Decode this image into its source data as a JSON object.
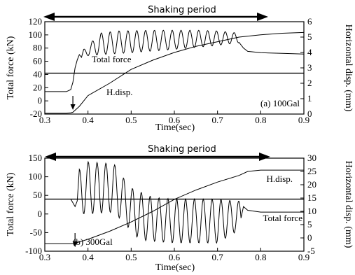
{
  "chart_data": [
    {
      "type": "line",
      "shaking_label": "Shaking period",
      "shaking_start": 0.31,
      "shaking_end": 0.76,
      "xlabel": "Time(sec)",
      "ylabel_left": "Total force (kN)",
      "ylabel_right": "Horizontal disp. (mm)",
      "xlim": [
        0.3,
        0.9
      ],
      "ylim_left": [
        -20,
        120
      ],
      "ylim_right": [
        0,
        6
      ],
      "x_ticks": [
        "0.3",
        "0.4",
        "0.5",
        "0.6",
        "0.7",
        "0.8",
        "0.9"
      ],
      "y_ticks_left": [
        "-20",
        "0",
        "20",
        "40",
        "60",
        "80",
        "100",
        "120"
      ],
      "y_ticks_right": [
        "0",
        "1",
        "2",
        "3",
        "4",
        "5",
        "6"
      ],
      "panel_label": "(a) 100Gal",
      "hline_left": 42,
      "arrow_x": 0.365,
      "series": [
        {
          "name": "Total force",
          "axis": "left",
          "x": [
            0.3,
            0.35,
            0.36,
            0.365,
            0.37,
            0.375,
            0.38,
            0.385,
            0.39,
            0.4,
            0.76,
            0.77,
            0.8,
            0.85,
            0.9
          ],
          "y": [
            14,
            14,
            17,
            28,
            50,
            62,
            70,
            66,
            74,
            70,
            80,
            75,
            73,
            72,
            71
          ],
          "osc_start": 0.39,
          "osc_end": 0.75,
          "osc_period": 0.0205,
          "osc_upper": [
            [
              0.39,
              78
            ],
            [
              0.43,
              103
            ],
            [
              0.47,
              106
            ],
            [
              0.55,
              107
            ],
            [
              0.65,
              107
            ],
            [
              0.7,
              106
            ],
            [
              0.745,
              103
            ]
          ],
          "osc_lower": [
            [
              0.39,
              68
            ],
            [
              0.43,
              70
            ],
            [
              0.5,
              73
            ],
            [
              0.6,
              78
            ],
            [
              0.7,
              84
            ],
            [
              0.745,
              88
            ]
          ]
        },
        {
          "name": "H.disp.",
          "axis": "right",
          "x": [
            0.3,
            0.35,
            0.36,
            0.365,
            0.38,
            0.4,
            0.45,
            0.5,
            0.55,
            0.6,
            0.65,
            0.7,
            0.75,
            0.8,
            0.85,
            0.9
          ],
          "y": [
            0.05,
            0.05,
            0.08,
            0.12,
            0.5,
            1.2,
            2.0,
            2.9,
            3.5,
            4.0,
            4.4,
            4.7,
            5.0,
            5.15,
            5.25,
            5.3
          ]
        }
      ]
    },
    {
      "type": "line",
      "shaking_label": "Shaking period",
      "shaking_start": 0.31,
      "shaking_end": 0.77,
      "xlabel": "Time(sec)",
      "ylabel_left": "Total force (kN)",
      "ylabel_right": "Horizontal disp. (mm)",
      "xlim": [
        0.3,
        0.9
      ],
      "ylim_left": [
        -100,
        150
      ],
      "ylim_right": [
        -5,
        30
      ],
      "x_ticks": [
        "0.3",
        "0.4",
        "0.5",
        "0.6",
        "0.7",
        "0.8",
        "0.9"
      ],
      "y_ticks_left": [
        "-100",
        "-50",
        "0",
        "50",
        "100",
        "150"
      ],
      "y_ticks_right": [
        "-5",
        "0",
        "5",
        "10",
        "15",
        "20",
        "25",
        "30"
      ],
      "panel_label": "(b) 300Gal",
      "hline_left": 40,
      "arrow_x": 0.37,
      "series": [
        {
          "name": "Total force",
          "axis": "left",
          "x": [
            0.3,
            0.36,
            0.365,
            0.37,
            0.375,
            0.38,
            0.76,
            0.77,
            0.8,
            0.85,
            0.9
          ],
          "y": [
            40,
            40,
            30,
            20,
            35,
            40,
            20,
            10,
            5,
            5,
            5
          ],
          "osc_start": 0.38,
          "osc_end": 0.755,
          "osc_period": 0.0205,
          "osc_upper": [
            [
              0.38,
              120
            ],
            [
              0.4,
              140
            ],
            [
              0.46,
              135
            ],
            [
              0.48,
              100
            ],
            [
              0.5,
              70
            ],
            [
              0.55,
              45
            ],
            [
              0.6,
              40
            ],
            [
              0.7,
              40
            ],
            [
              0.74,
              35
            ]
          ],
          "osc_lower": [
            [
              0.38,
              0
            ],
            [
              0.4,
              0
            ],
            [
              0.46,
              5
            ],
            [
              0.48,
              -20
            ],
            [
              0.52,
              -70
            ],
            [
              0.6,
              -78
            ],
            [
              0.7,
              -78
            ],
            [
              0.74,
              -50
            ]
          ]
        },
        {
          "name": "H.disp.",
          "axis": "right",
          "x": [
            0.3,
            0.36,
            0.37,
            0.4,
            0.45,
            0.5,
            0.55,
            0.6,
            0.65,
            0.7,
            0.75,
            0.77,
            0.8,
            0.85,
            0.9
          ],
          "y": [
            -2.2,
            -2.2,
            -2.0,
            -0.5,
            2.5,
            6.0,
            10.0,
            14.5,
            18.0,
            21.0,
            23.5,
            25.0,
            25.5,
            25.5,
            25.5
          ]
        }
      ]
    }
  ]
}
